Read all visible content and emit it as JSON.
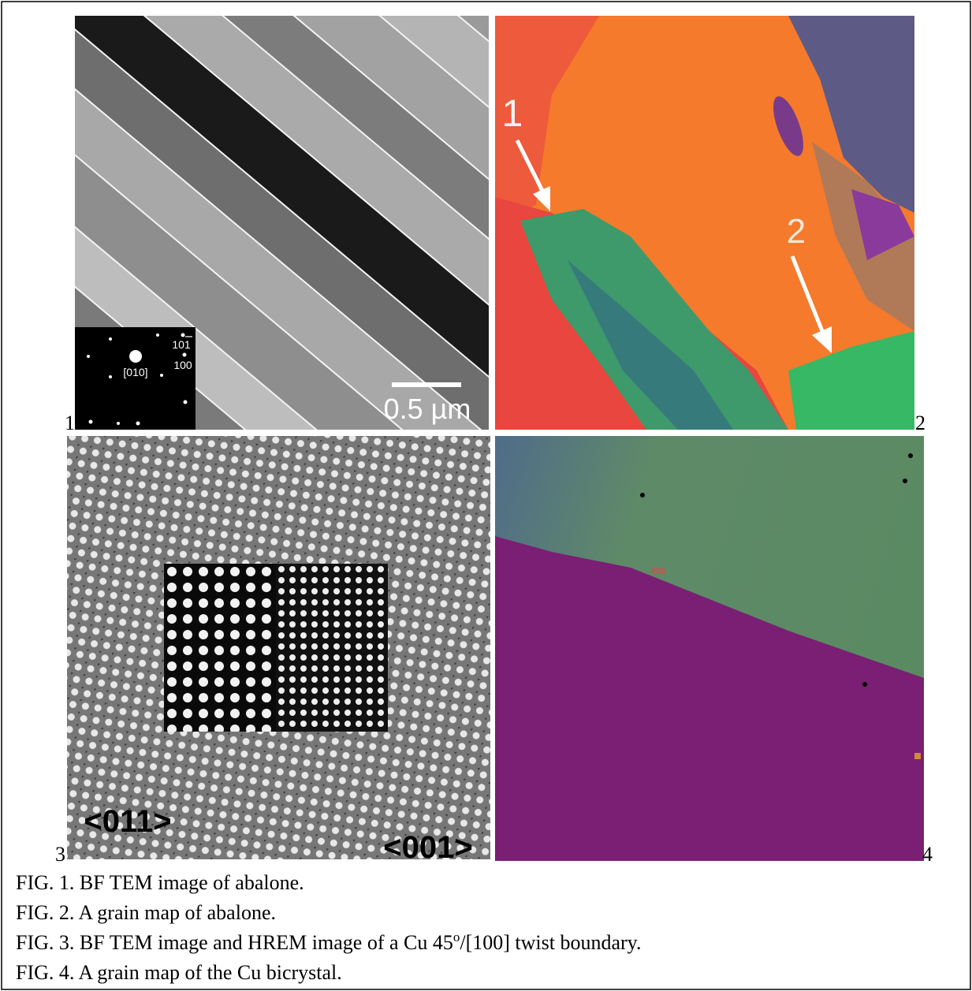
{
  "panels": [
    {
      "number": "1",
      "inset": {
        "spot_a": "10",
        "spot_a_bar": "1",
        "spot_b": "100",
        "zone": "[010]"
      },
      "scale_bar": "0.5 µm"
    },
    {
      "number": "2",
      "arrow_labels": [
        "1",
        "2"
      ]
    },
    {
      "number": "3",
      "labels": [
        "<011>",
        "<001>"
      ]
    },
    {
      "number": "4"
    }
  ],
  "captions": [
    "FIG. 1.  BF TEM image of abalone.",
    "FIG. 2.  A grain map of abalone.",
    {
      "before": "FIG. 3. BF TEM image and HREM image of a Cu 45",
      "sup": "o",
      "after": "/[100] twist boundary."
    },
    "FIG. 4. A grain map of the Cu bicrystal."
  ]
}
